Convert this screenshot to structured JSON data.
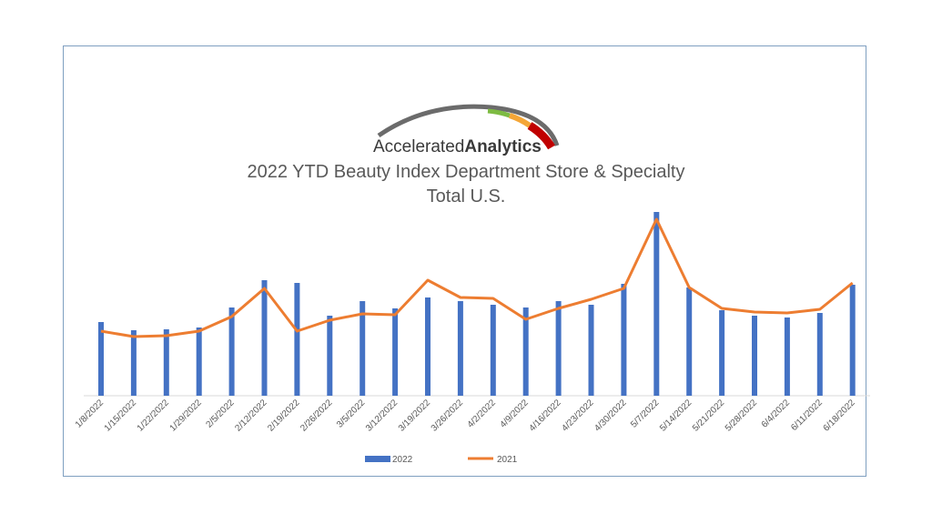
{
  "logo": {
    "text_regular": "Accelerated",
    "text_bold": "Analytics"
  },
  "chart_data": {
    "type": "bar",
    "title": "2022 YTD Beauty Index Department Store & Specialty",
    "subtitle": "Total U.S.",
    "xlabel": "",
    "ylabel": "",
    "grid": false,
    "legend_position": "bottom",
    "categories": [
      "1/8/2022",
      "1/15/2022",
      "1/22/2022",
      "1/29/2022",
      "2/5/2022",
      "2/12/2022",
      "2/19/2022",
      "2/26/2022",
      "3/5/2022",
      "3/12/2022",
      "3/19/2022",
      "3/26/2022",
      "4/2/2022",
      "4/9/2022",
      "4/16/2022",
      "4/23/2022",
      "4/30/2022",
      "5/7/2022",
      "5/14/2022",
      "5/21/2022",
      "5/28/2022",
      "6/4/2022",
      "6/11/2022",
      "6/18/2022"
    ],
    "series": [
      {
        "name": "2022",
        "type": "bar",
        "color": "#4472c4",
        "values": [
          81,
          72,
          73,
          75,
          97,
          127,
          124,
          88,
          104,
          96,
          108,
          104,
          100,
          97,
          104,
          100,
          123,
          202,
          119,
          94,
          88,
          86,
          91,
          122
        ]
      },
      {
        "name": "2021",
        "type": "line",
        "color": "#ed7d31",
        "values": [
          71,
          65,
          66,
          71,
          87,
          118,
          71,
          83,
          90,
          89,
          127,
          108,
          107,
          84,
          96,
          106,
          118,
          194,
          119,
          96,
          92,
          91,
          95,
          124
        ]
      }
    ],
    "ylim": [
      0,
      210
    ]
  }
}
